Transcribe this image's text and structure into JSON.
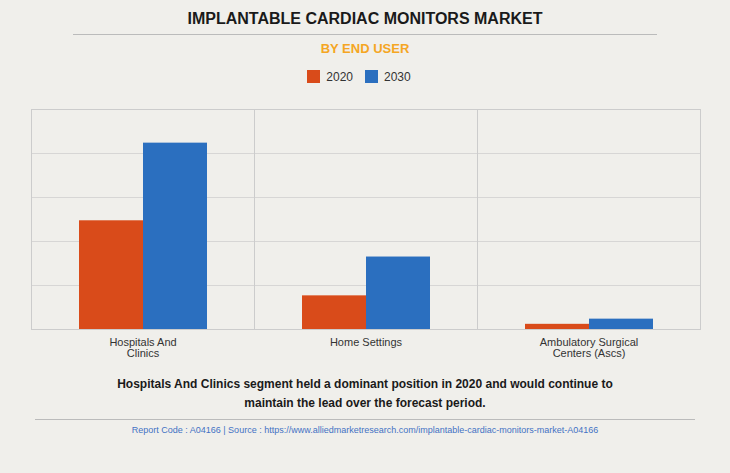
{
  "chart_data": {
    "type": "bar",
    "title": "IMPLANTABLE CARDIAC MONITORS MARKET",
    "subtitle": "BY END USER",
    "categories": [
      "Hospitals And\nClinics",
      "Home Settings",
      "Ambulatory Surgical\nCenters (Ascs)"
    ],
    "series": [
      {
        "name": "2020",
        "color": "#D94B1A",
        "values": [
          0.42,
          0.13,
          0.02
        ]
      },
      {
        "name": "2030",
        "color": "#2B6FBF",
        "values": [
          0.72,
          0.28,
          0.04
        ]
      }
    ],
    "ylim": [
      0,
      0.85
    ],
    "yticks": [
      0,
      0.17,
      0.34,
      0.51,
      0.68,
      0.85
    ],
    "grid": true,
    "legend": "top",
    "tick_labels": "x",
    "annotations": [
      "Hospitals And Clinics segment held a dominant position in 2020 and would continue to\nmaintain the lead over the forecast period.",
      "Report Code : A04166  |  Source : https://www.alliedmarketresearch.com/implantable-cardiac-monitors-market-A04166"
    ]
  }
}
